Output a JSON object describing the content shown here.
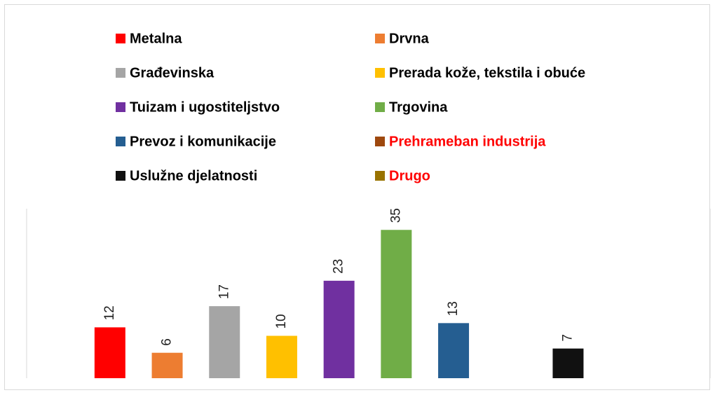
{
  "chart_data": {
    "type": "bar",
    "categories": [
      "Metalna",
      "Drvna",
      "Građevinska",
      "Prerada kože, tekstila i obuće",
      "Tuizam i ugostiteljstvo",
      "Trgovina",
      "Prevoz i komunikacije",
      "Prehrameban industrija",
      "Uslužne djelatnosti",
      "Drugo"
    ],
    "values": [
      12,
      6,
      17,
      10,
      23,
      35,
      13,
      null,
      7,
      null
    ],
    "colors": [
      "#ff0000",
      "#ed7d31",
      "#a5a5a5",
      "#ffc000",
      "#7030a0",
      "#70ad47",
      "#255e91",
      "#9e480e",
      "#111111",
      "#997300"
    ],
    "legend_label_colors": [
      "#000000",
      "#000000",
      "#000000",
      "#000000",
      "#000000",
      "#000000",
      "#000000",
      "#ff0000",
      "#000000",
      "#ff0000"
    ],
    "ylim": [
      0,
      40
    ]
  }
}
